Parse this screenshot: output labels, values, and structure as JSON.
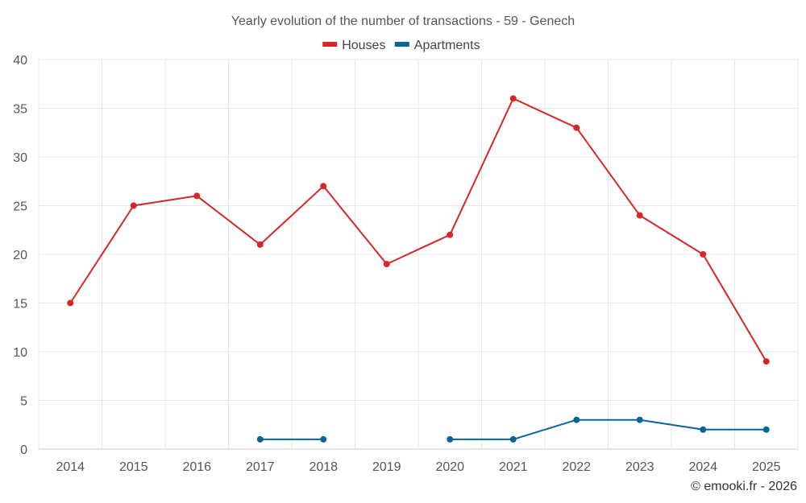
{
  "chart_data": {
    "type": "line",
    "title": "Yearly evolution of the number of transactions - 59 - Genech",
    "categories": [
      "2014",
      "2015",
      "2016",
      "2017",
      "2018",
      "2019",
      "2020",
      "2021",
      "2022",
      "2023",
      "2024",
      "2025"
    ],
    "ylim": [
      0,
      40
    ],
    "yticks": [
      0,
      5,
      10,
      15,
      20,
      25,
      30,
      35,
      40
    ],
    "grid": true,
    "legend_position": "top-center",
    "series": [
      {
        "name": "Houses",
        "color": "#d62728",
        "values": [
          15,
          25,
          26,
          21,
          27,
          19,
          22,
          36,
          33,
          24,
          20,
          9
        ]
      },
      {
        "name": "Apartments",
        "color": "#08659a",
        "values": [
          null,
          null,
          null,
          1,
          1,
          null,
          1,
          1,
          3,
          3,
          2,
          2
        ]
      }
    ]
  },
  "credit": "© emooki.fr - 2026"
}
